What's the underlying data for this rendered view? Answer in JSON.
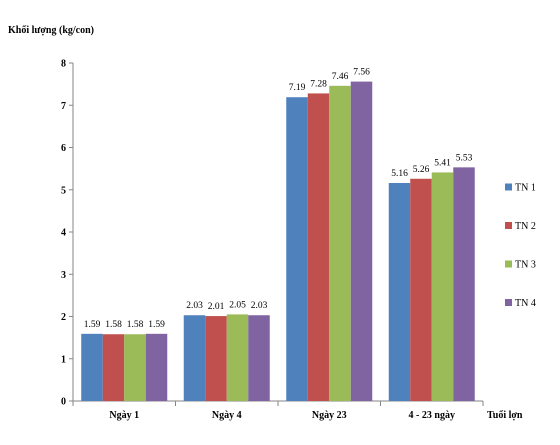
{
  "chart_data": {
    "type": "bar",
    "ylabel": "Khối lượng (kg/con)",
    "xlabel": "Tuổi lợn",
    "categories": [
      "Ngày 1",
      "Ngày 4",
      "Ngày 23",
      "4 - 23 ngày"
    ],
    "ylim": [
      0,
      8
    ],
    "yticks": [
      0,
      1,
      2,
      3,
      4,
      5,
      6,
      7,
      8
    ],
    "grid": false,
    "legend_position": "right",
    "series": [
      {
        "name": "TN 1",
        "color": "#4f81bd",
        "values": [
          1.59,
          2.03,
          7.19,
          5.16
        ]
      },
      {
        "name": "TN 2",
        "color": "#c0504d",
        "values": [
          1.58,
          2.01,
          7.28,
          5.26
        ]
      },
      {
        "name": "TN 3",
        "color": "#9bbb59",
        "values": [
          1.58,
          2.05,
          7.46,
          5.41
        ]
      },
      {
        "name": "TN 4",
        "color": "#8064a2",
        "values": [
          1.59,
          2.03,
          7.56,
          5.53
        ]
      }
    ]
  }
}
